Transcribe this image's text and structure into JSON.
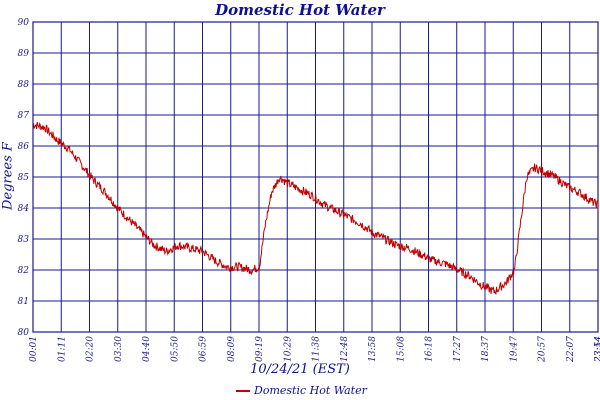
{
  "chart_data": {
    "type": "line",
    "title": "Domestic Hot Water",
    "xlabel": "10/24/21 (EST)",
    "ylabel": "Degrees F",
    "ylim": [
      80,
      90
    ],
    "y_ticks": [
      "80",
      "81",
      "82",
      "83",
      "84",
      "85",
      "86",
      "87",
      "88",
      "89",
      "90"
    ],
    "x_ticks": [
      "00:01",
      "01:11",
      "02:20",
      "03:30",
      "04:40",
      "05:50",
      "06:59",
      "08:09",
      "09:19",
      "10:29",
      "11:38",
      "12:48",
      "13:58",
      "15:08",
      "16:18",
      "17:27",
      "18:37",
      "19:47",
      "20:57",
      "22:07",
      "23:14",
      "23:54"
    ],
    "grid": true,
    "legend_position": "bottom-center",
    "colors": {
      "series": "#c00000",
      "grid": "#1a1a8c"
    },
    "series": [
      {
        "name": "Domestic Hot Water",
        "x": [
          "00:01",
          "00:30",
          "01:00",
          "01:30",
          "02:00",
          "02:30",
          "03:00",
          "03:30",
          "04:00",
          "04:30",
          "05:00",
          "05:30",
          "06:00",
          "06:30",
          "07:00",
          "07:30",
          "08:00",
          "08:30",
          "09:00",
          "09:20",
          "09:35",
          "09:50",
          "10:10",
          "10:30",
          "11:00",
          "11:30",
          "12:00",
          "12:30",
          "13:00",
          "13:30",
          "14:00",
          "14:30",
          "15:00",
          "15:30",
          "16:00",
          "16:30",
          "17:00",
          "17:30",
          "18:00",
          "18:30",
          "19:00",
          "19:30",
          "19:50",
          "20:05",
          "20:20",
          "20:40",
          "21:00",
          "21:30",
          "22:00",
          "22:30",
          "23:00",
          "23:30",
          "23:54"
        ],
        "values": [
          86.7,
          86.6,
          86.2,
          85.9,
          85.4,
          84.9,
          84.5,
          84.0,
          83.6,
          83.2,
          82.8,
          82.6,
          82.8,
          82.7,
          82.6,
          82.3,
          82.1,
          82.1,
          82.0,
          82.1,
          83.5,
          84.5,
          85.0,
          84.8,
          84.6,
          84.4,
          84.1,
          83.9,
          83.7,
          83.5,
          83.2,
          83.0,
          82.8,
          82.7,
          82.5,
          82.3,
          82.2,
          82.0,
          81.8,
          81.5,
          81.3,
          81.6,
          82.0,
          83.5,
          85.0,
          85.3,
          85.2,
          85.0,
          84.7,
          84.5,
          84.2,
          84.0,
          84.0
        ]
      }
    ]
  }
}
